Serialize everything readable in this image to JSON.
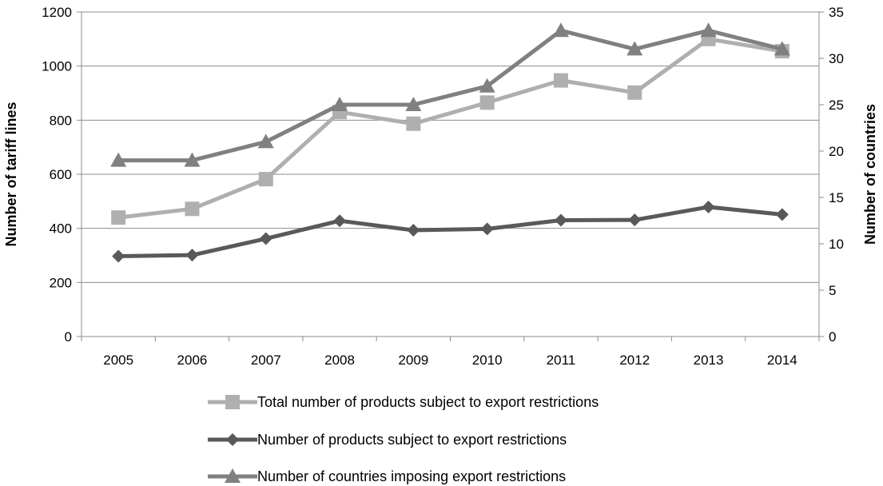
{
  "chart_data": {
    "type": "line",
    "categories": [
      "2005",
      "2006",
      "2007",
      "2008",
      "2009",
      "2010",
      "2011",
      "2012",
      "2013",
      "2014"
    ],
    "y_left": {
      "label": "Number of tariff lines",
      "ylim": [
        0,
        1200
      ],
      "ticks": [
        "0",
        "200",
        "400",
        "600",
        "800",
        "1000",
        "1200"
      ]
    },
    "y_right": {
      "label": "Number of countries",
      "ylim": [
        0,
        35
      ],
      "ticks": [
        "0",
        "5",
        "10",
        "15",
        "20",
        "25",
        "30",
        "35"
      ]
    },
    "grid": true,
    "legend_position": "bottom",
    "series": [
      {
        "name": "Total number of products subject to export restrictions",
        "axis": "left",
        "marker": "square",
        "color": "#AFAFAF",
        "values": [
          440,
          472,
          582,
          830,
          787,
          865,
          947,
          902,
          1100,
          1055
        ]
      },
      {
        "name": "Number of products subject to export restrictions",
        "axis": "left",
        "marker": "diamond",
        "color": "#595959",
        "values": [
          297,
          301,
          362,
          428,
          393,
          398,
          430,
          431,
          479,
          451
        ]
      },
      {
        "name": "Number of countries imposing export restrictions",
        "axis": "right",
        "marker": "triangle",
        "color": "#808080",
        "values": [
          19,
          19,
          21,
          25,
          25,
          27,
          33,
          31,
          33,
          31
        ]
      }
    ]
  }
}
